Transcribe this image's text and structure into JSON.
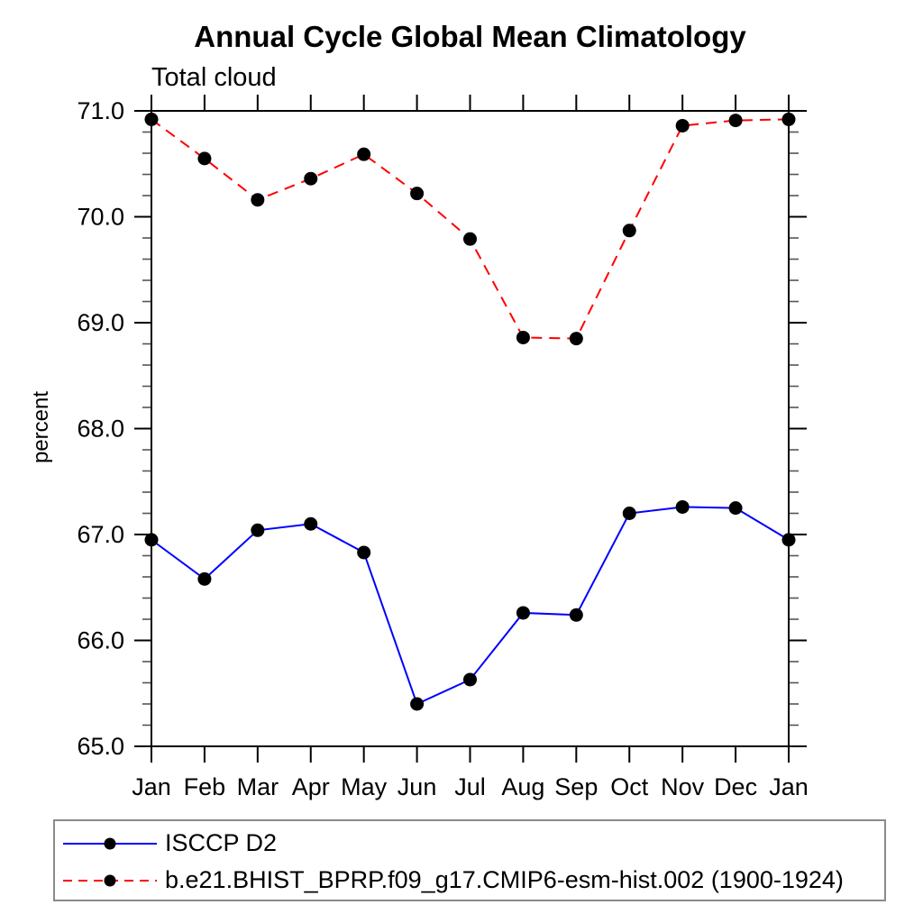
{
  "chart_data": {
    "type": "line",
    "title": "Annual Cycle Global Mean Climatology",
    "subtitle": "Total cloud",
    "ylabel": "percent",
    "xlabel": "",
    "categories": [
      "Jan",
      "Feb",
      "Mar",
      "Apr",
      "May",
      "Jun",
      "Jul",
      "Aug",
      "Sep",
      "Oct",
      "Nov",
      "Dec",
      "Jan"
    ],
    "ylim": [
      65.0,
      71.0
    ],
    "ytick_step": 1.0,
    "ytick_minor_step": 0.2,
    "ytick_labels": [
      "65.0",
      "66.0",
      "67.0",
      "68.0",
      "69.0",
      "70.0",
      "71.0"
    ],
    "grid": false,
    "legend_position": "bottom-left-box",
    "frame_color": "#000000",
    "minor_tick_color": "#555555",
    "series": [
      {
        "name": "ISCCP D2",
        "color": "#0000ff",
        "line_style": "solid",
        "marker": "circle",
        "marker_color": "#000000",
        "values": [
          66.95,
          66.58,
          67.04,
          67.1,
          66.83,
          65.4,
          65.63,
          66.26,
          66.24,
          67.2,
          67.26,
          67.25,
          66.95
        ]
      },
      {
        "name": "b.e21.BHIST_BPRP.f09_g17.CMIP6-esm-hist.002 (1900-1924)",
        "color": "#ff0000",
        "line_style": "dashed",
        "marker": "circle",
        "marker_color": "#000000",
        "values": [
          70.92,
          70.55,
          70.16,
          70.36,
          70.59,
          70.22,
          69.79,
          68.86,
          68.85,
          69.87,
          70.86,
          70.91,
          70.92
        ]
      }
    ]
  }
}
